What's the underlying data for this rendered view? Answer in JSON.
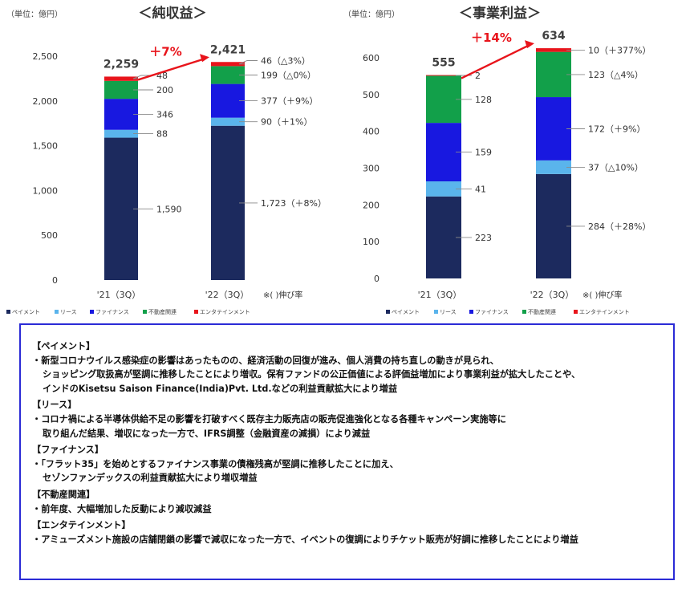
{
  "chart_data": [
    {
      "type": "bar",
      "stacked": true,
      "title": "＜純収益＞",
      "unit_label": "（単位：億円）",
      "categories": [
        "'21（3Q）",
        "'22（3Q）"
      ],
      "series": [
        {
          "name": "ペイメント",
          "color": "#1c2a5e",
          "values": [
            1590,
            1723
          ],
          "labels": [
            "1,590",
            "1,723（＋8%）"
          ]
        },
        {
          "name": "リース",
          "color": "#5ab4ec",
          "values": [
            88,
            90
          ],
          "labels": [
            "88",
            "90（＋1%）"
          ]
        },
        {
          "name": "ファイナンス",
          "color": "#1818e0",
          "values": [
            346,
            377
          ],
          "labels": [
            "346",
            "377（＋9%）"
          ]
        },
        {
          "name": "不動産関連",
          "color": "#12a04a",
          "values": [
            200,
            199
          ],
          "labels": [
            "200",
            "199（△0%）"
          ]
        },
        {
          "name": "エンタテインメント",
          "color": "#e8141b",
          "values": [
            48,
            46
          ],
          "labels": [
            "48",
            "46（△3%）"
          ]
        }
      ],
      "totals": [
        2259,
        2421
      ],
      "total_labels": [
        "2,259",
        "2,421"
      ],
      "growth_label": "＋7%",
      "footnote": "※( )伸び率",
      "yticks": [
        "0",
        "500",
        "1,000",
        "1,500",
        "2,000",
        "2,500"
      ],
      "ylim": [
        0,
        2500
      ],
      "grid": false,
      "legend_position": "bottom"
    },
    {
      "type": "bar",
      "stacked": true,
      "title": "＜事業利益＞",
      "unit_label": "（単位：億円）",
      "categories": [
        "'21（3Q）",
        "'22（3Q）"
      ],
      "series": [
        {
          "name": "ペイメント",
          "color": "#1c2a5e",
          "values": [
            223,
            284
          ],
          "labels": [
            "223",
            "284（＋28%）"
          ]
        },
        {
          "name": "リース",
          "color": "#5ab4ec",
          "values": [
            41,
            37
          ],
          "labels": [
            "41",
            "37（△10%）"
          ]
        },
        {
          "name": "ファイナンス",
          "color": "#1818e0",
          "values": [
            159,
            172
          ],
          "labels": [
            "159",
            "172（＋9%）"
          ]
        },
        {
          "name": "不動産関連",
          "color": "#12a04a",
          "values": [
            128,
            123
          ],
          "labels": [
            "128",
            "123（△4%）"
          ]
        },
        {
          "name": "エンタテインメント",
          "color": "#e8141b",
          "values": [
            2,
            10
          ],
          "labels": [
            "2",
            "10（＋377%）"
          ]
        }
      ],
      "totals": [
        555,
        634
      ],
      "total_labels": [
        "555",
        "634"
      ],
      "growth_label": "＋14%",
      "footnote": "※( )伸び率",
      "yticks": [
        "0",
        "100",
        "200",
        "300",
        "400",
        "500",
        "600"
      ],
      "ylim": [
        0,
        600
      ],
      "grid": false,
      "legend_position": "bottom"
    }
  ],
  "notes": [
    {
      "heading": "【ペイメント】",
      "lines": [
        "・新型コロナウイルス感染症の影響はあったものの、経済活動の回復が進み、個人消費の持ち直しの動きが見られ、",
        "ショッピング取扱高が堅調に推移したことにより増収。保有ファンドの公正価値による評価益増加により事業利益が拡大したことや、",
        "インドのKisetsu Saison Finance(India)Pvt. Ltd.などの利益貢献拡大により増益"
      ]
    },
    {
      "heading": "【リース】",
      "lines": [
        "・コロナ禍による半導体供給不足の影響を打破すべく既存主力販売店の販売促進強化となる各種キャンペーン実施等に",
        "取り組んだ結果、増収になった一方で、IFRS調整（金融資産の減損）により減益"
      ]
    },
    {
      "heading": "【ファイナンス】",
      "lines": [
        "・「フラット35」を始めとするファイナンス事業の債権残高が堅調に推移したことに加え、",
        "セゾンファンデックスの利益貢献拡大により増収増益"
      ]
    },
    {
      "heading": "【不動産関連】",
      "lines": [
        "・前年度、大幅増加した反動により減収減益"
      ]
    },
    {
      "heading": "【エンタテインメント】",
      "lines": [
        "・アミューズメント施設の店舗閉鎖の影響で減収になった一方で、イベントの復調によりチケット販売が好調に推移したことにより増益"
      ]
    }
  ]
}
